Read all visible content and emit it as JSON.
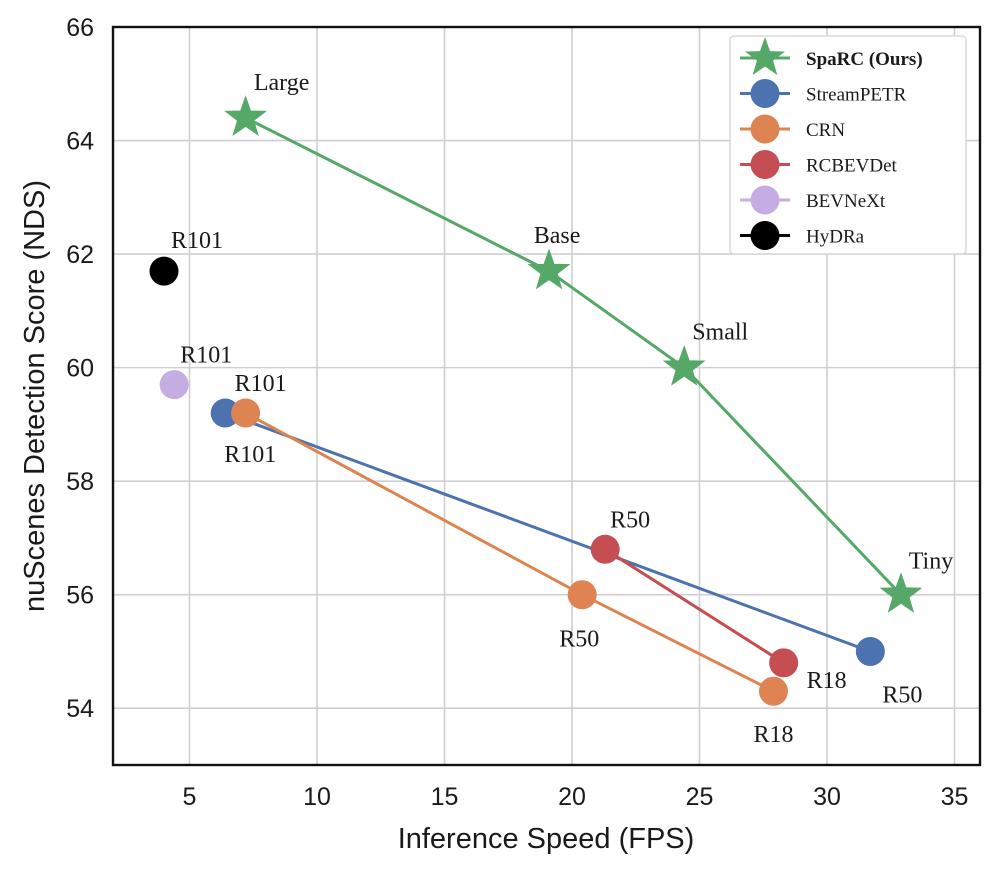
{
  "chart_data": {
    "type": "scatter",
    "title": "",
    "xlabel": "Inference Speed (FPS)",
    "ylabel": "nuScenes Detection Score (NDS)",
    "xlim": [
      2.0,
      36.0
    ],
    "ylim": [
      53.0,
      66.0
    ],
    "xticks": [
      5,
      10,
      15,
      20,
      25,
      30,
      35
    ],
    "yticks": [
      54,
      56,
      58,
      60,
      62,
      64,
      66
    ],
    "grid": true,
    "legend_position": "top-right",
    "series": [
      {
        "name": "SpaRC (Ours)",
        "color": "#55a868",
        "marker": "star",
        "bold_legend": true,
        "connect": true,
        "points": [
          {
            "x": 7.2,
            "y": 64.4,
            "label": "Large"
          },
          {
            "x": 19.1,
            "y": 61.7,
            "label": "Base"
          },
          {
            "x": 24.4,
            "y": 60.0,
            "label": "Small"
          },
          {
            "x": 32.9,
            "y": 56.0,
            "label": "Tiny"
          }
        ]
      },
      {
        "name": "StreamPETR",
        "color": "#4c72b0",
        "marker": "circle",
        "connect": true,
        "points": [
          {
            "x": 6.4,
            "y": 59.2,
            "label": "R101"
          },
          {
            "x": 31.7,
            "y": 55.0,
            "label": "R50"
          }
        ]
      },
      {
        "name": "CRN",
        "color": "#dd8452",
        "marker": "circle",
        "connect": true,
        "points": [
          {
            "x": 7.2,
            "y": 59.2,
            "label": "R101"
          },
          {
            "x": 20.4,
            "y": 56.0,
            "label": "R50"
          },
          {
            "x": 27.9,
            "y": 54.3,
            "label": "R18"
          }
        ]
      },
      {
        "name": "RCBEVDet",
        "color": "#c44e52",
        "marker": "circle",
        "connect": true,
        "points": [
          {
            "x": 21.3,
            "y": 56.8,
            "label": "R50"
          },
          {
            "x": 28.3,
            "y": 54.8,
            "label": "R18"
          }
        ]
      },
      {
        "name": "BEVNeXt",
        "color": "#c4ade3",
        "marker": "circle",
        "connect": false,
        "points": [
          {
            "x": 4.4,
            "y": 59.7,
            "label": "R101"
          }
        ]
      },
      {
        "name": "HyDRa",
        "color": "#000000",
        "marker": "circle",
        "connect": false,
        "points": [
          {
            "x": 4.0,
            "y": 61.7,
            "label": "R101"
          }
        ]
      }
    ]
  }
}
